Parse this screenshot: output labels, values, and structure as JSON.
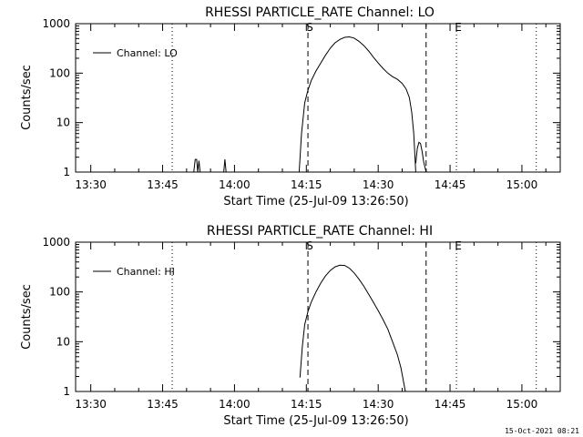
{
  "timestamp": "15-Oct-2021 08:21",
  "chart_data": [
    {
      "type": "line",
      "title": "RHESSI PARTICLE_RATE Channel: LO",
      "xlabel": "Start Time (25-Jul-09 13:26:50)",
      "ylabel": "Counts/sec",
      "x_ticks": [
        "13:30",
        "13:45",
        "14:00",
        "14:15",
        "14:30",
        "14:45",
        "15:00"
      ],
      "y_ticks": [
        "1",
        "10",
        "100",
        "1000"
      ],
      "y_scale": "log",
      "ylim": [
        1,
        1000
      ],
      "xlim": [
        "13:26:50",
        "15:08:00"
      ],
      "grid": false,
      "legend": {
        "position": "top-left",
        "entries": [
          "Channel: LO"
        ]
      },
      "markers": [
        {
          "time": "13:47:00",
          "style": "dotted",
          "label": ""
        },
        {
          "time": "14:15:20",
          "style": "dashed",
          "label": "S"
        },
        {
          "time": "14:40:00",
          "style": "dashed",
          "label": ""
        },
        {
          "time": "14:46:20",
          "style": "dotted",
          "label": "E"
        },
        {
          "time": "15:03:00",
          "style": "dotted",
          "label": ""
        }
      ],
      "series": [
        {
          "name": "Channel: LO",
          "segments": [
            [
              [
                "13:51:30",
                1
              ],
              [
                "13:51:48",
                1.8
              ],
              [
                "13:52:06",
                1.8
              ],
              [
                "13:52:20",
                1
              ],
              [
                "13:52:35",
                1.7
              ],
              [
                "13:52:50",
                1
              ]
            ],
            [
              [
                "13:57:45",
                1
              ],
              [
                "13:58:00",
                1.8
              ],
              [
                "13:58:15",
                1
              ]
            ],
            [
              [
                "14:13:30",
                1
              ],
              [
                "14:14:00",
                6
              ],
              [
                "14:14:40",
                25
              ],
              [
                "14:15:20",
                45
              ],
              [
                "14:16:00",
                70
              ],
              [
                "14:17:00",
                110
              ],
              [
                "14:18:00",
                160
              ],
              [
                "14:19:00",
                230
              ],
              [
                "14:20:00",
                320
              ],
              [
                "14:21:00",
                410
              ],
              [
                "14:22:00",
                480
              ],
              [
                "14:23:00",
                530
              ],
              [
                "14:24:00",
                540
              ],
              [
                "14:25:00",
                510
              ],
              [
                "14:26:00",
                440
              ],
              [
                "14:27:00",
                360
              ],
              [
                "14:28:00",
                280
              ],
              [
                "14:29:00",
                210
              ],
              [
                "14:30:00",
                160
              ],
              [
                "14:31:00",
                125
              ],
              [
                "14:32:00",
                100
              ],
              [
                "14:33:00",
                85
              ],
              [
                "14:34:00",
                75
              ],
              [
                "14:35:00",
                62
              ],
              [
                "14:35:50",
                48
              ],
              [
                "14:36:30",
                32
              ],
              [
                "14:37:00",
                16
              ],
              [
                "14:37:25",
                6
              ],
              [
                "14:37:50",
                1
              ]
            ],
            [
              [
                "14:37:50",
                1.5
              ],
              [
                "14:38:10",
                3
              ],
              [
                "14:38:30",
                4
              ],
              [
                "14:38:50",
                3.8
              ],
              [
                "14:39:10",
                2.6
              ],
              [
                "14:39:30",
                1.6
              ],
              [
                "14:40:00",
                1
              ]
            ]
          ]
        }
      ]
    },
    {
      "type": "line",
      "title": "RHESSI PARTICLE_RATE Channel: HI",
      "xlabel": "Start Time (25-Jul-09 13:26:50)",
      "ylabel": "Counts/sec",
      "x_ticks": [
        "13:30",
        "13:45",
        "14:00",
        "14:15",
        "14:30",
        "14:45",
        "15:00"
      ],
      "y_ticks": [
        "1",
        "10",
        "100",
        "1000"
      ],
      "y_scale": "log",
      "ylim": [
        1,
        1000
      ],
      "xlim": [
        "13:26:50",
        "15:08:00"
      ],
      "grid": false,
      "legend": {
        "position": "top-left",
        "entries": [
          "Channel: HI"
        ]
      },
      "markers": [
        {
          "time": "13:47:00",
          "style": "dotted",
          "label": ""
        },
        {
          "time": "14:15:20",
          "style": "dashed",
          "label": "S"
        },
        {
          "time": "14:40:00",
          "style": "dashed",
          "label": ""
        },
        {
          "time": "14:46:20",
          "style": "dotted",
          "label": "E"
        },
        {
          "time": "15:03:00",
          "style": "dotted",
          "label": ""
        }
      ],
      "series": [
        {
          "name": "Channel: HI",
          "segments": [
            [
              [
                "14:13:40",
                1.9
              ],
              [
                "14:14:10",
                8
              ],
              [
                "14:14:40",
                22
              ],
              [
                "14:15:20",
                40
              ],
              [
                "14:16:00",
                62
              ],
              [
                "14:17:00",
                100
              ],
              [
                "14:18:00",
                150
              ],
              [
                "14:19:00",
                210
              ],
              [
                "14:20:00",
                270
              ],
              [
                "14:21:00",
                320
              ],
              [
                "14:22:00",
                345
              ],
              [
                "14:23:00",
                340
              ],
              [
                "14:24:00",
                300
              ],
              [
                "14:25:00",
                240
              ],
              [
                "14:26:00",
                180
              ],
              [
                "14:27:00",
                130
              ],
              [
                "14:28:00",
                90
              ],
              [
                "14:29:00",
                62
              ],
              [
                "14:30:00",
                42
              ],
              [
                "14:31:00",
                28
              ],
              [
                "14:32:00",
                18
              ],
              [
                "14:33:00",
                10
              ],
              [
                "14:34:00",
                5.5
              ],
              [
                "14:34:45",
                3
              ],
              [
                "14:35:20",
                1.5
              ],
              [
                "14:35:40",
                1
              ]
            ]
          ]
        }
      ]
    }
  ]
}
